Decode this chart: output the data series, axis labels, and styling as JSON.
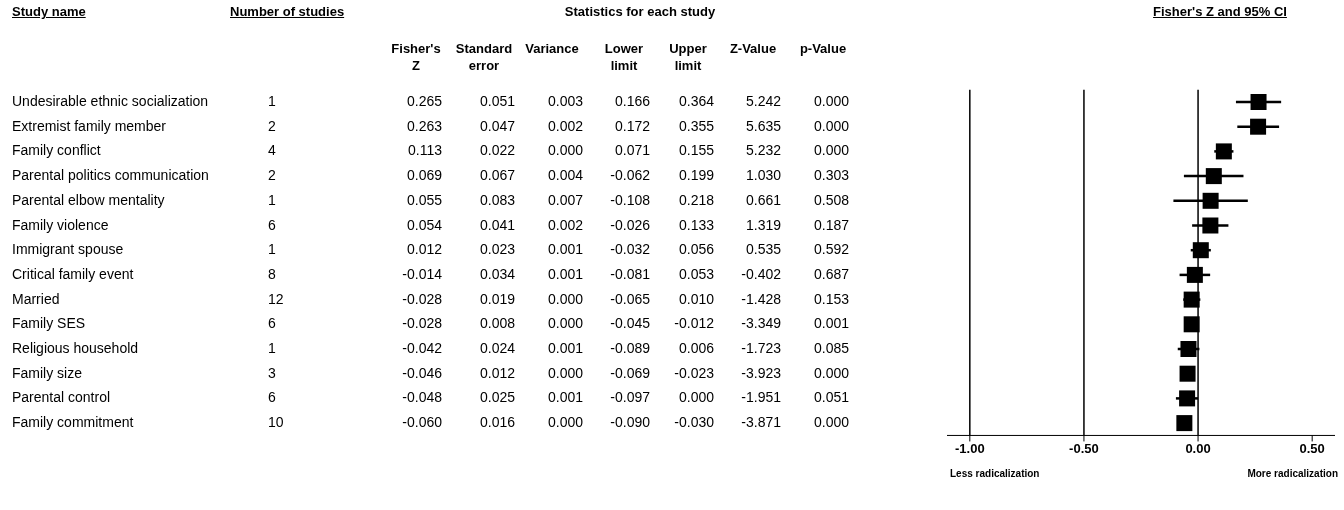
{
  "chart_data": [
    {
      "type": "other",
      "title": "Statistics for each study",
      "ylabel": "Study name",
      "categories": [
        "Number of studies",
        "Fisher's Z",
        "Standard error",
        "Variance",
        "Lower limit",
        "Upper limit",
        "Z-Value",
        "p-Value"
      ],
      "y_categories": [
        "Undesirable ethnic socialization",
        "Extremist family member",
        "Family conflict",
        "Parental politics communication",
        "Parental elbow mentality",
        "Family violence",
        "Immigrant spouse",
        "Critical family event",
        "Married",
        "Family SES",
        "Religious household",
        "Family size",
        "Parental control",
        "Family commitment"
      ],
      "cell_labels": [
        [
          "1",
          "0.265",
          "0.051",
          "0.003",
          "0.166",
          "0.364",
          "5.242",
          "0.000"
        ],
        [
          "2",
          "0.263",
          "0.047",
          "0.002",
          "0.172",
          "0.355",
          "5.635",
          "0.000"
        ],
        [
          "4",
          "0.113",
          "0.022",
          "0.000",
          "0.071",
          "0.155",
          "5.232",
          "0.000"
        ],
        [
          "2",
          "0.069",
          "0.067",
          "0.004",
          "-0.062",
          "0.199",
          "1.030",
          "0.303"
        ],
        [
          "1",
          "0.055",
          "0.083",
          "0.007",
          "-0.108",
          "0.218",
          "0.661",
          "0.508"
        ],
        [
          "6",
          "0.054",
          "0.041",
          "0.002",
          "-0.026",
          "0.133",
          "1.319",
          "0.187"
        ],
        [
          "1",
          "0.012",
          "0.023",
          "0.001",
          "-0.032",
          "0.056",
          "0.535",
          "0.592"
        ],
        [
          "8",
          "-0.014",
          "0.034",
          "0.001",
          "-0.081",
          "0.053",
          "-0.402",
          "0.687"
        ],
        [
          "12",
          "-0.028",
          "0.019",
          "0.000",
          "-0.065",
          "0.010",
          "-1.428",
          "0.153"
        ],
        [
          "6",
          "-0.028",
          "0.008",
          "0.000",
          "-0.045",
          "-0.012",
          "-3.349",
          "0.001"
        ],
        [
          "1",
          "-0.042",
          "0.024",
          "0.001",
          "-0.089",
          "0.006",
          "-1.723",
          "0.085"
        ],
        [
          "3",
          "-0.046",
          "0.012",
          "0.000",
          "-0.069",
          "-0.023",
          "-3.923",
          "0.000"
        ],
        [
          "6",
          "-0.048",
          "0.025",
          "0.001",
          "-0.097",
          "0.000",
          "-1.951",
          "0.051"
        ],
        [
          "10",
          "-0.060",
          "0.016",
          "0.000",
          "-0.090",
          "-0.030",
          "-3.871",
          "0.000"
        ]
      ]
    },
    {
      "type": "scatter",
      "orientation": "horizontal",
      "title": "Fisher's Z and 95% CI",
      "color": "#000000",
      "marker": "square",
      "tick_labels": "x",
      "categories": [
        null,
        null,
        null,
        null,
        null,
        null,
        null,
        null,
        null,
        null,
        null,
        null,
        null,
        null
      ],
      "values": [
        0.265,
        0.263,
        0.113,
        0.069,
        0.055,
        0.054,
        0.012,
        -0.014,
        -0.028,
        -0.028,
        -0.042,
        -0.046,
        -0.048,
        -0.06
      ],
      "errors": [
        [
          0.166,
          0.364
        ],
        [
          0.172,
          0.355
        ],
        [
          0.071,
          0.155
        ],
        [
          -0.062,
          0.199
        ],
        [
          -0.108,
          0.218
        ],
        [
          -0.026,
          0.133
        ],
        [
          -0.032,
          0.056
        ],
        [
          -0.081,
          0.053
        ],
        [
          -0.065,
          0.01
        ],
        null,
        [
          -0.089,
          0.006
        ],
        [
          -0.069,
          -0.023
        ],
        [
          -0.097,
          0.0
        ],
        [
          -0.09,
          -0.03
        ]
      ],
      "xlim": [
        -1.1,
        0.6
      ],
      "xticks": [
        {
          "value": -1,
          "label": "-1.00"
        },
        {
          "value": -0.5,
          "label": "-0.50"
        },
        {
          "value": 0,
          "label": "0.00"
        },
        {
          "value": 0.5,
          "label": "0.50"
        }
      ],
      "ref_lines": [
        {
          "axis": "x",
          "value": -1
        },
        {
          "axis": "x",
          "value": -0.5
        },
        {
          "axis": "x",
          "value": 0
        }
      ],
      "annotations": [
        "Less radicalization",
        "More radicalization"
      ]
    }
  ]
}
